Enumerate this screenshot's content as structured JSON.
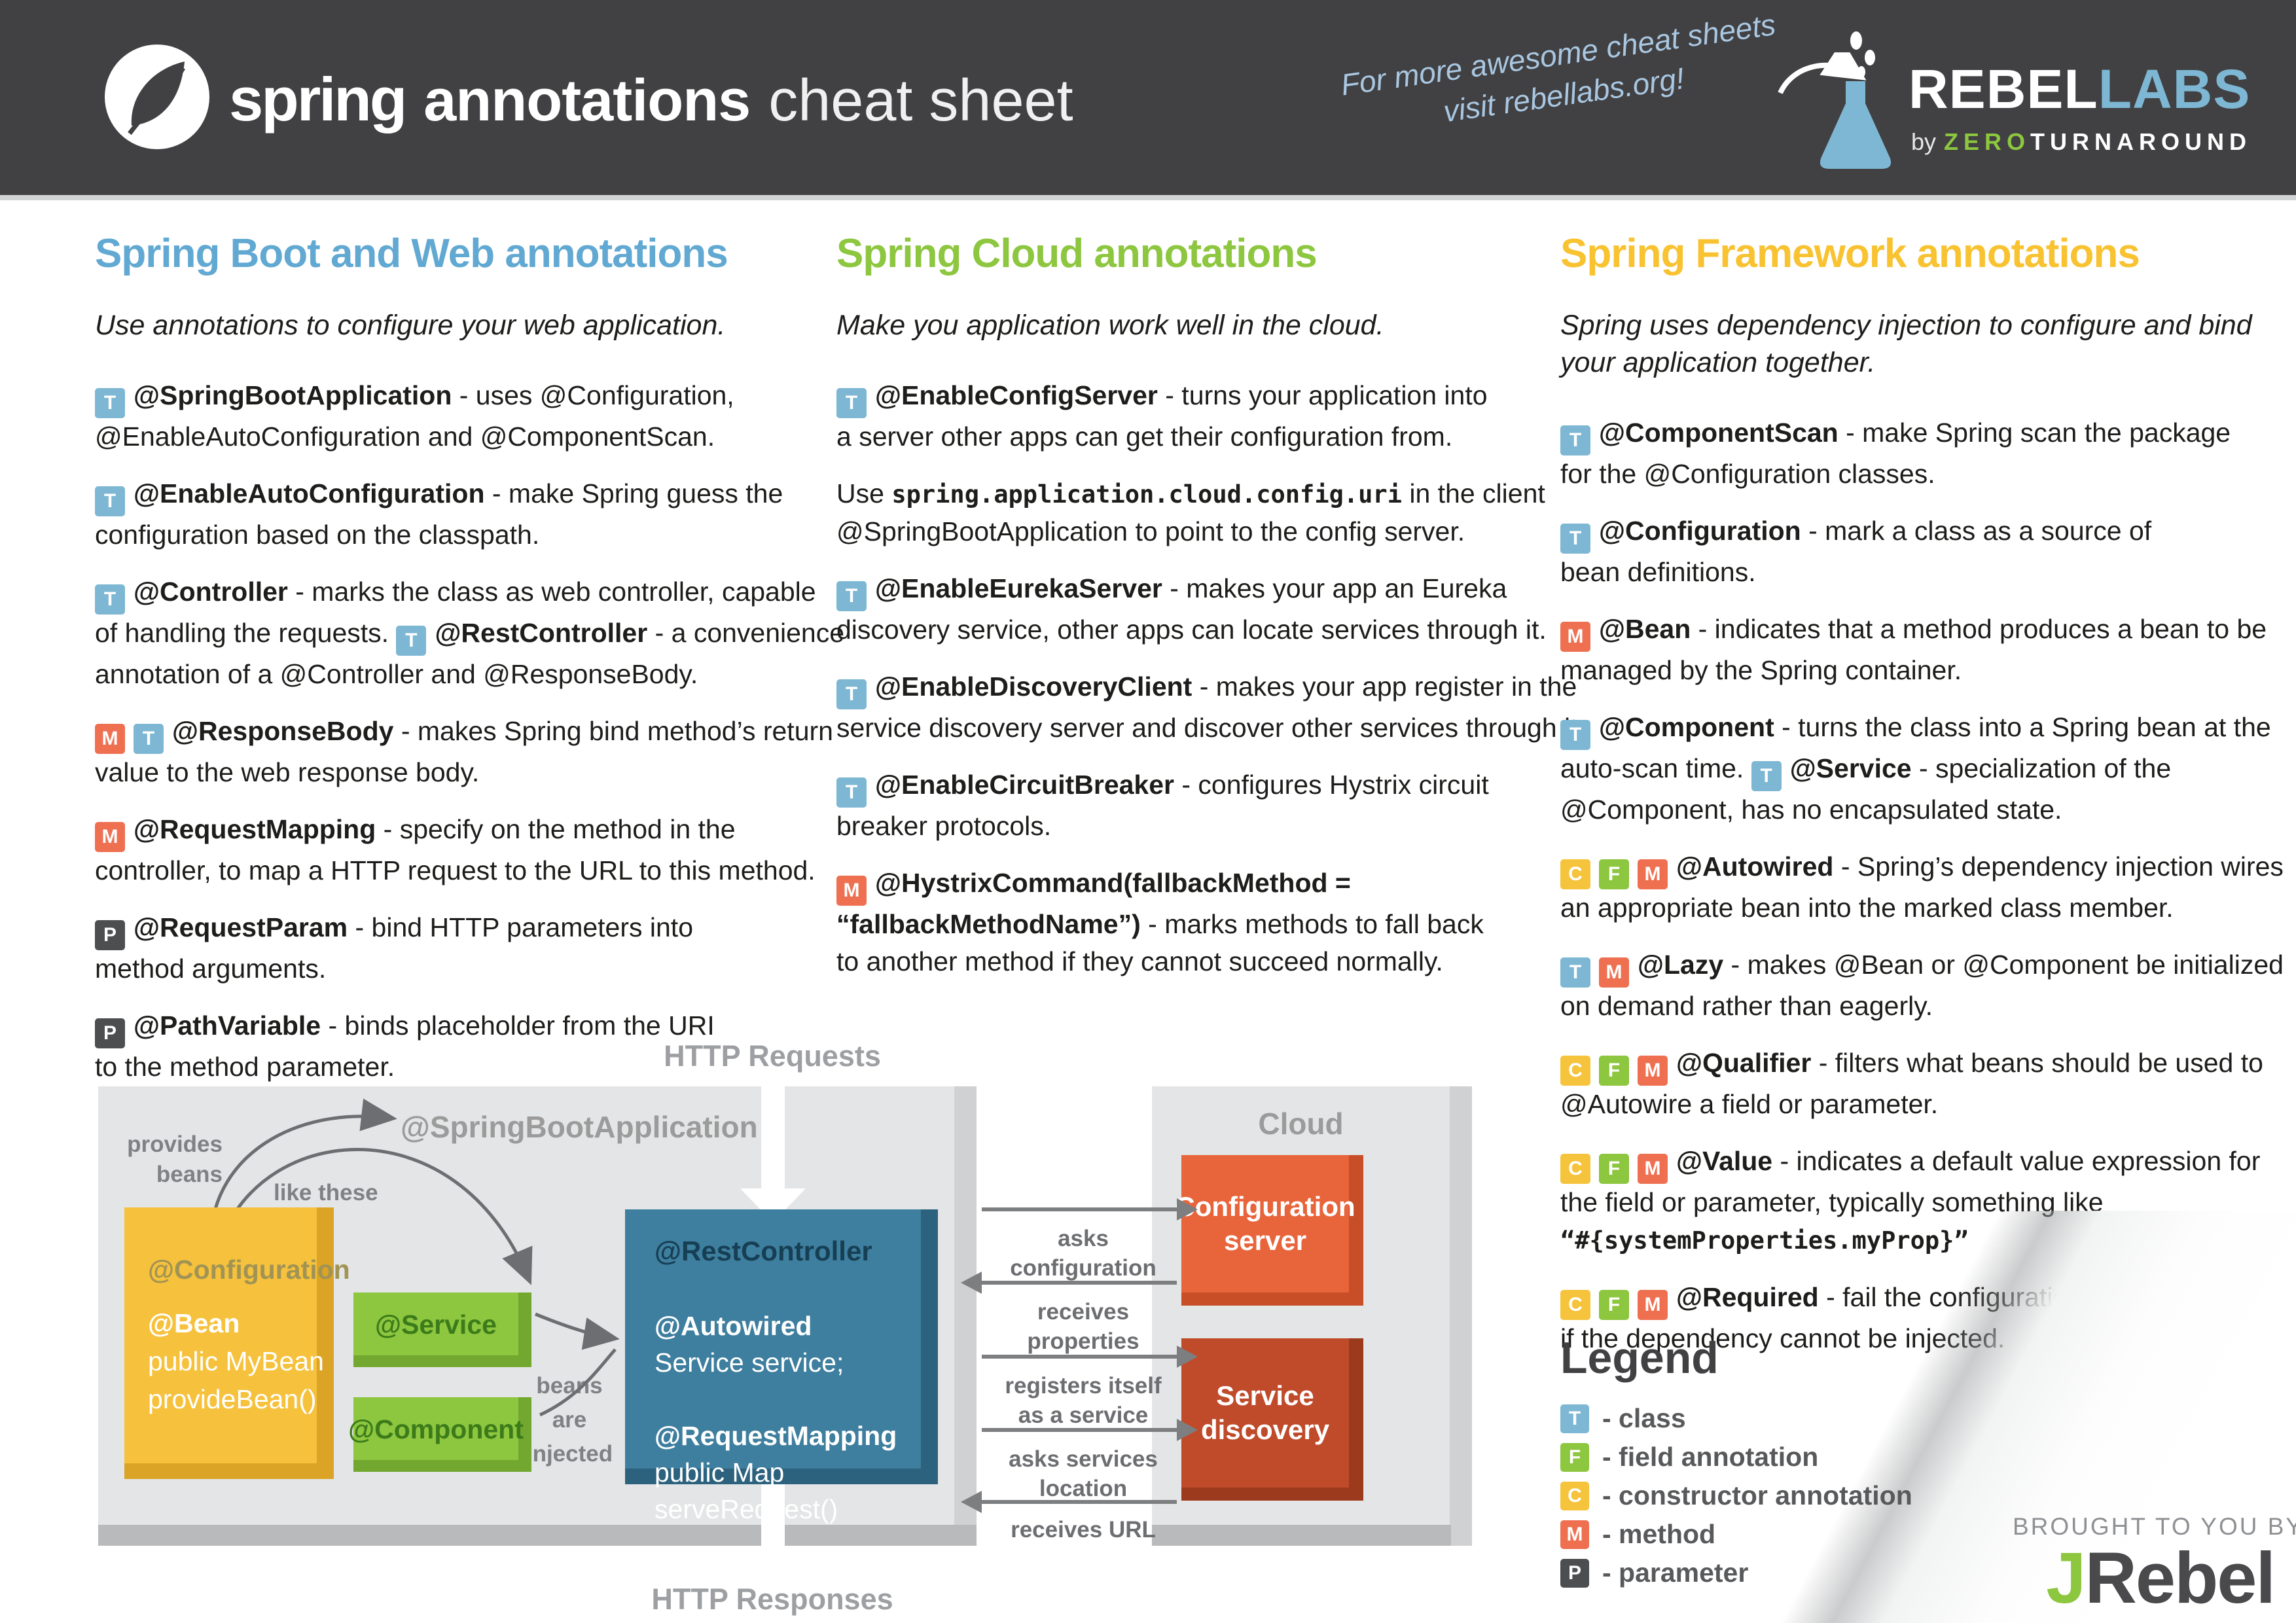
{
  "header": {
    "logo_word": "spring",
    "title_bold": "annotations",
    "title_light": "cheat sheet",
    "note": "For more awesome cheat sheets\nvisit rebellabs.org!",
    "brand": {
      "rebel": "REBEL",
      "labs": "LABS",
      "by": "by",
      "zero": "ZERO",
      "turnaround": "TURNAROUND"
    }
  },
  "colors": {
    "badges": {
      "T": "#7db7d3",
      "F": "#8dc63f",
      "C": "#f5c33c",
      "M": "#ee7051",
      "P": "#4d4e50"
    },
    "header_bg": "#414042",
    "panel_bg": "#e4e5e6"
  },
  "columns": [
    {
      "id": "spring-boot-web",
      "title": "Spring Boot and Web annotations",
      "title_color": "#61a9d2",
      "subtitle": "Use annotations to configure your web application.",
      "entries": [
        {
          "runs": [
            {
              "k": "g",
              "v": "T"
            },
            {
              "k": "b",
              "v": "@SpringBootApplication"
            },
            {
              "k": "n",
              "v": " - uses @Configuration,\n@EnableAutoConfiguration and @ComponentScan."
            }
          ]
        },
        {
          "runs": [
            {
              "k": "g",
              "v": "T"
            },
            {
              "k": "b",
              "v": "@EnableAutoConfiguration"
            },
            {
              "k": "n",
              "v": " - make Spring guess the\nconfiguration based on the classpath."
            }
          ]
        },
        {
          "runs": [
            {
              "k": "g",
              "v": "T"
            },
            {
              "k": "b",
              "v": "@Controller"
            },
            {
              "k": "n",
              "v": " - marks the class as web controller, capable\nof handling the requests. "
            },
            {
              "k": "g",
              "v": "T"
            },
            {
              "k": "b",
              "v": "@RestController"
            },
            {
              "k": "n",
              "v": " - a convenience\nannotation of a @Controller and @ResponseBody."
            }
          ]
        },
        {
          "runs": [
            {
              "k": "g",
              "v": "M"
            },
            {
              "k": "g",
              "v": "T"
            },
            {
              "k": "b",
              "v": "@ResponseBody"
            },
            {
              "k": "n",
              "v": " - makes Spring bind method’s return\nvalue to the web response body."
            }
          ]
        },
        {
          "runs": [
            {
              "k": "g",
              "v": "M"
            },
            {
              "k": "b",
              "v": "@RequestMapping"
            },
            {
              "k": "n",
              "v": " - specify on the method in the\ncontroller, to map a HTTP request to the URL to this method."
            }
          ]
        },
        {
          "runs": [
            {
              "k": "g",
              "v": "P"
            },
            {
              "k": "b",
              "v": "@RequestParam"
            },
            {
              "k": "n",
              "v": " - bind HTTP parameters into\nmethod arguments."
            }
          ]
        },
        {
          "runs": [
            {
              "k": "g",
              "v": "P"
            },
            {
              "k": "b",
              "v": "@PathVariable"
            },
            {
              "k": "n",
              "v": " - binds placeholder from the URI\nto the method parameter."
            }
          ]
        }
      ]
    },
    {
      "id": "spring-cloud",
      "title": "Spring Cloud annotations",
      "title_color": "#8dc63f",
      "subtitle": "Make you application work well in the cloud.",
      "entries": [
        {
          "runs": [
            {
              "k": "g",
              "v": "T"
            },
            {
              "k": "b",
              "v": "@EnableConfigServer"
            },
            {
              "k": "n",
              "v": " - turns your application into\na server other apps can get their configuration from."
            }
          ]
        },
        {
          "runs": [
            {
              "k": "n",
              "v": "Use "
            },
            {
              "k": "m",
              "v": "spring.application.cloud.config.uri"
            },
            {
              "k": "n",
              "v": " in the client\n@SpringBootApplication to point to the config server."
            }
          ]
        },
        {
          "runs": [
            {
              "k": "g",
              "v": "T"
            },
            {
              "k": "b",
              "v": "@EnableEurekaServer"
            },
            {
              "k": "n",
              "v": " - makes your app an Eureka\ndiscovery service, other apps can locate services through it."
            }
          ]
        },
        {
          "runs": [
            {
              "k": "g",
              "v": "T"
            },
            {
              "k": "b",
              "v": "@EnableDiscoveryClient"
            },
            {
              "k": "n",
              "v": " - makes your app register in the\nservice discovery server and discover other services through it."
            }
          ]
        },
        {
          "runs": [
            {
              "k": "g",
              "v": "T"
            },
            {
              "k": "b",
              "v": "@EnableCircuitBreaker"
            },
            {
              "k": "n",
              "v": " - configures Hystrix circuit\nbreaker protocols."
            }
          ]
        },
        {
          "runs": [
            {
              "k": "g",
              "v": "M"
            },
            {
              "k": "b",
              "v": "@HystrixCommand(fallbackMethod =\n“fallbackMethodName”)"
            },
            {
              "k": "n",
              "v": " - marks methods to fall back\nto another method if they cannot succeed normally."
            }
          ]
        }
      ]
    },
    {
      "id": "spring-framework",
      "title": "Spring Framework annotations",
      "title_color": "#f8c231",
      "subtitle": "Spring uses dependency injection to configure and bind\nyour application together.",
      "entries": [
        {
          "runs": [
            {
              "k": "g",
              "v": "T"
            },
            {
              "k": "b",
              "v": "@ComponentScan"
            },
            {
              "k": "n",
              "v": " - make Spring scan the package\nfor the @Configuration classes."
            }
          ]
        },
        {
          "runs": [
            {
              "k": "g",
              "v": "T"
            },
            {
              "k": "b",
              "v": "@Configuration"
            },
            {
              "k": "n",
              "v": " - mark a class as a source of\nbean definitions."
            }
          ]
        },
        {
          "runs": [
            {
              "k": "g",
              "v": "M"
            },
            {
              "k": "b",
              "v": "@Bean"
            },
            {
              "k": "n",
              "v": " - indicates that a method produces a bean to be\nmanaged by the Spring container."
            }
          ]
        },
        {
          "runs": [
            {
              "k": "g",
              "v": "T"
            },
            {
              "k": "b",
              "v": "@Component"
            },
            {
              "k": "n",
              "v": " - turns the class into a Spring bean at the\nauto-scan time. "
            },
            {
              "k": "g",
              "v": "T"
            },
            {
              "k": "b",
              "v": "@Service"
            },
            {
              "k": "n",
              "v": " - specialization of the\n@Component, has no encapsulated state."
            }
          ]
        },
        {
          "runs": [
            {
              "k": "g",
              "v": "C"
            },
            {
              "k": "g",
              "v": "F"
            },
            {
              "k": "g",
              "v": "M"
            },
            {
              "k": "b",
              "v": "@Autowired"
            },
            {
              "k": "n",
              "v": " - Spring’s dependency injection wires\nan appropriate bean into the marked class member."
            }
          ]
        },
        {
          "runs": [
            {
              "k": "g",
              "v": "T"
            },
            {
              "k": "g",
              "v": "M"
            },
            {
              "k": "b",
              "v": "@Lazy"
            },
            {
              "k": "n",
              "v": " - makes @Bean or @Component be initialized\non demand rather than eagerly."
            }
          ]
        },
        {
          "runs": [
            {
              "k": "g",
              "v": "C"
            },
            {
              "k": "g",
              "v": "F"
            },
            {
              "k": "g",
              "v": "M"
            },
            {
              "k": "b",
              "v": "@Qualifier"
            },
            {
              "k": "n",
              "v": " - filters what beans should be used to\n@Autowire a field or parameter."
            }
          ]
        },
        {
          "runs": [
            {
              "k": "g",
              "v": "C"
            },
            {
              "k": "g",
              "v": "F"
            },
            {
              "k": "g",
              "v": "M"
            },
            {
              "k": "b",
              "v": "@Value"
            },
            {
              "k": "n",
              "v": " - indicates a default value expression for\nthe field or parameter, typically something like\n"
            },
            {
              "k": "m",
              "v": "“#{systemProperties.myProp}”"
            }
          ]
        },
        {
          "runs": [
            {
              "k": "g",
              "v": "C"
            },
            {
              "k": "g",
              "v": "F"
            },
            {
              "k": "g",
              "v": "M"
            },
            {
              "k": "b",
              "v": "@Required"
            },
            {
              "k": "n",
              "v": " - fail the configuration,\nif the dependency cannot be injected."
            }
          ]
        }
      ]
    }
  ],
  "legend": {
    "title": "Legend",
    "items": [
      {
        "badge": "T",
        "label": "-  class"
      },
      {
        "badge": "F",
        "label": "-  field annotation"
      },
      {
        "badge": "C",
        "label": "- constructor annotation"
      },
      {
        "badge": "M",
        "label": "- method"
      },
      {
        "badge": "P",
        "label": "- parameter"
      }
    ]
  },
  "diagram": {
    "labels": {
      "http_requests": "HTTP Requests",
      "http_responses": "HTTP Responses",
      "springboot": "@SpringBootApplication",
      "provides": "provides\nbeans",
      "like_these": "like these",
      "beans_injected": "beans\nare\ninjected",
      "cloud": "Cloud"
    },
    "boxes": {
      "configuration": {
        "title": "@Configuration",
        "bean": "@Bean",
        "code": "\npublic MyBean\nprovideBean()"
      },
      "service": "@Service",
      "component": "@Component",
      "rest": {
        "title": "@RestController",
        "autowired": "@Autowired",
        "l2": "\nService service;\n\n",
        "mapping": "@RequestMapping",
        "l4": "\npublic Map serveRequest()"
      },
      "config_server": "Configuration\nserver",
      "discovery": "Service\ndiscovery"
    },
    "gap_arrows": [
      {
        "dir": "right",
        "label": "asks\nconfiguration"
      },
      {
        "dir": "left",
        "label": "receives\nproperties"
      },
      {
        "dir": "right",
        "label": "registers itself\nas a service"
      },
      {
        "dir": "right",
        "label": "asks services\nlocation"
      },
      {
        "dir": "left",
        "label": "receives URL"
      }
    ]
  },
  "footer": {
    "brought": "BROUGHT TO YOU BY",
    "jrebel_j": "J",
    "jrebel_rest": "Rebel"
  }
}
